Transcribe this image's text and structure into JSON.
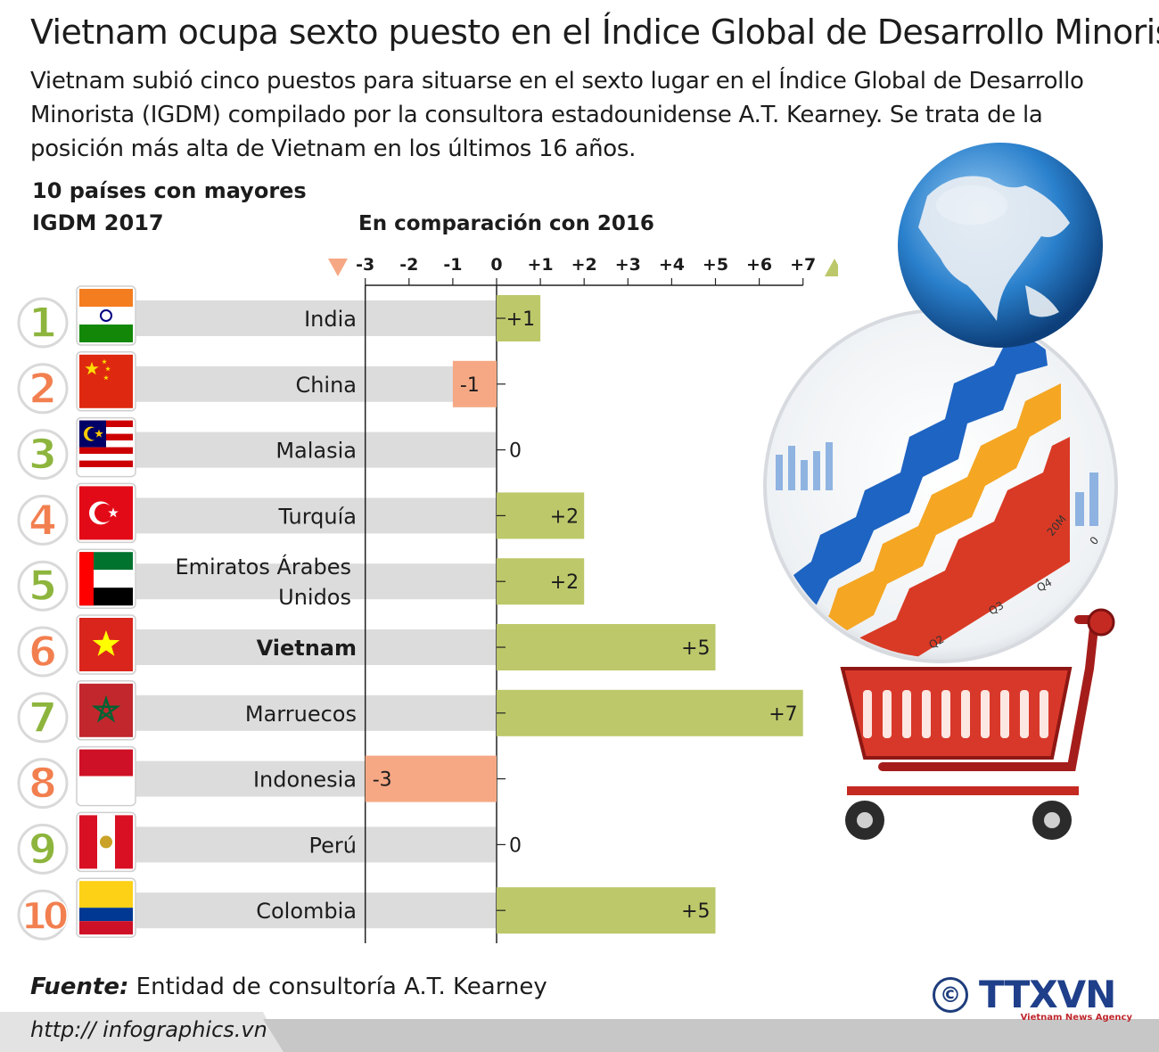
{
  "title": "Vietnam ocupa sexto puesto en el Índice Global de Desarrollo Minorista",
  "subtitle": "Vietnam subió cinco puestos para situarse en el sexto lugar en el Índice Global de Desarrollo Minorista (IGDM) compilado por la consultora estadounidense A.T. Kearney. Se trata de la posición más alta de Vietnam en los últimos 16 años.",
  "chart_data": {
    "type": "bar",
    "title": "10 países con mayores IGDM 2017",
    "xlabel": "En comparación con 2016",
    "xlim": [
      -3,
      7
    ],
    "ticks": [
      "-3",
      "-2",
      "-1",
      "0",
      "+1",
      "+2",
      "+3",
      "+4",
      "+5",
      "+6",
      "+7"
    ],
    "categories": [
      "India",
      "China",
      "Malasia",
      "Turquía",
      "Emiratos Árabes Unidos",
      "Vietnam",
      "Marruecos",
      "Indonesia",
      "Perú",
      "Colombia"
    ],
    "ranks": [
      1,
      2,
      3,
      4,
      5,
      6,
      7,
      8,
      9,
      10
    ],
    "values": [
      1,
      -1,
      0,
      2,
      2,
      5,
      7,
      -3,
      0,
      5
    ],
    "value_labels": [
      "+1",
      "-1",
      "0",
      "+2",
      "+2",
      "+5",
      "+7",
      "-3",
      "0",
      "+5"
    ],
    "highlight": "Vietnam",
    "colors": {
      "positive": "#bdc86a",
      "negative": "#f6a884",
      "track": "#dcdcdc",
      "rank": "#8db53d",
      "rank_alt": "#f27f4f",
      "down_marker": "#f6a884",
      "up_marker": "#bdc86a"
    },
    "flags": [
      "india-flag-icon",
      "china-flag-icon",
      "malaysia-flag-icon",
      "turkey-flag-icon",
      "uae-flag-icon",
      "vietnam-flag-icon",
      "morocco-flag-icon",
      "indonesia-flag-icon",
      "peru-flag-icon",
      "colombia-flag-icon"
    ]
  },
  "source": {
    "label": "Fuente:",
    "text": "Entidad de consultoría A.T. Kearney"
  },
  "footer": {
    "url": "http:// infographics.vn"
  },
  "logo": {
    "name": "TTXVN",
    "tagline": "Vietnam News Agency",
    "copyright": "©"
  },
  "illustration": {
    "axis_labels": [
      "Q2",
      "Q3",
      "Q4",
      "20M",
      "0"
    ]
  }
}
